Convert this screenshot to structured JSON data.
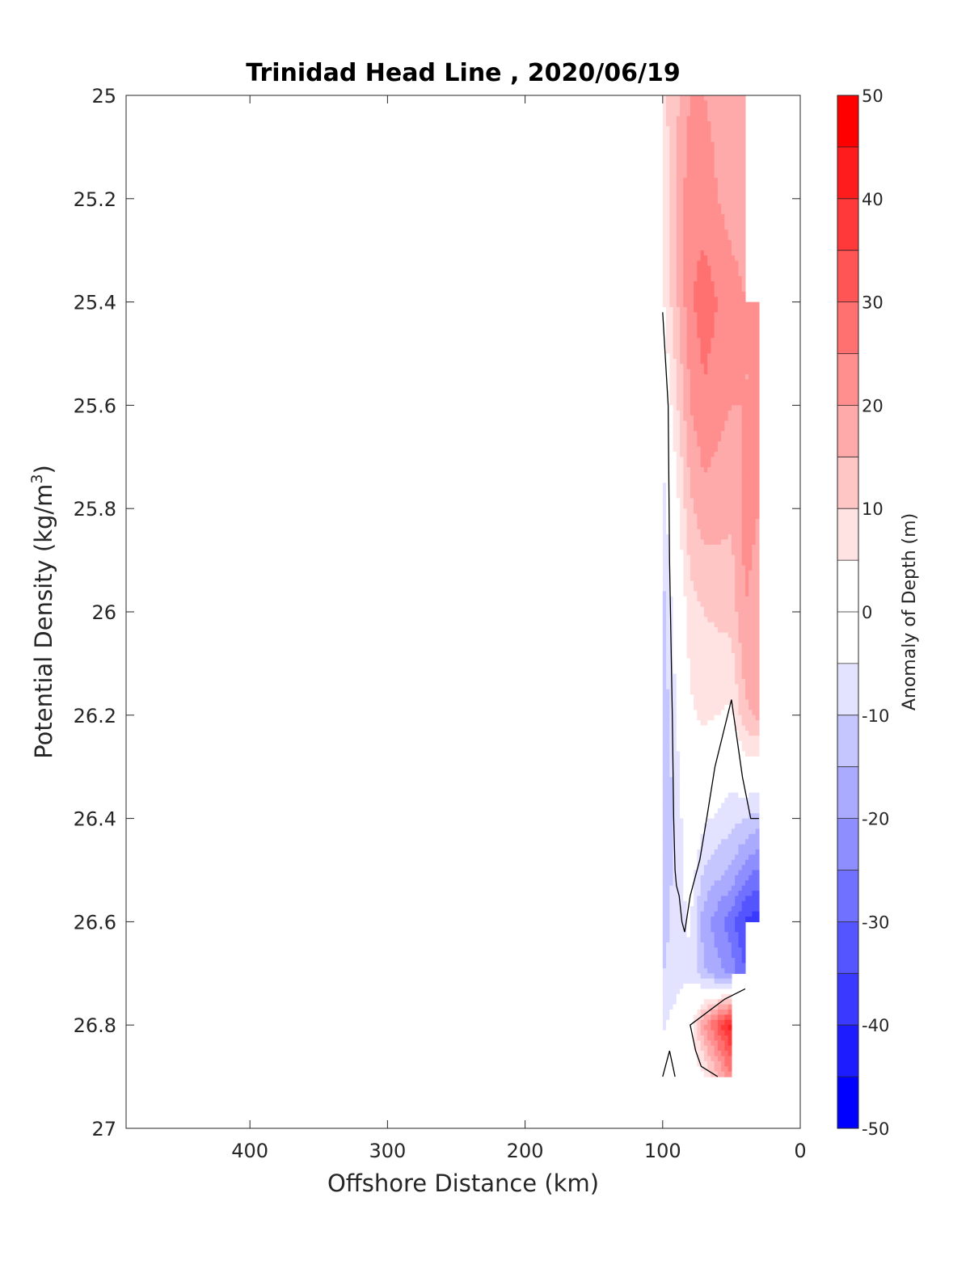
{
  "chart_data": {
    "type": "heatmap",
    "subtype": "filled-contour",
    "title": "Trinidad Head Line , 2020/06/19",
    "xlabel": "Offshore Distance (km)",
    "ylabel_main": "Potential Density (kg/m",
    "ylabel_sup": "3",
    "ylabel_tail": ")",
    "xlim": [
      490,
      0
    ],
    "x_reversed": true,
    "ylim": [
      25,
      27
    ],
    "y_reversed": true,
    "x_ticks": [
      400,
      300,
      200,
      100,
      0
    ],
    "y_ticks": [
      25,
      25.2,
      25.4,
      25.6,
      25.8,
      26,
      26.2,
      26.4,
      26.6,
      26.8,
      27
    ],
    "x_tick_labels": [
      "400",
      "300",
      "200",
      "100",
      "0"
    ],
    "y_tick_labels": [
      "25",
      "25.2",
      "25.4",
      "25.6",
      "25.8",
      "26",
      "26.2",
      "26.4",
      "26.6",
      "26.8",
      "27"
    ],
    "colorbar": {
      "label": "Anomaly of Depth (m)",
      "range": [
        -50,
        50
      ],
      "levels": [
        -50,
        -45,
        -40,
        -35,
        -30,
        -25,
        -20,
        -15,
        -10,
        -5,
        0,
        5,
        10,
        15,
        20,
        25,
        30,
        35,
        40,
        45,
        50
      ],
      "ticks": [
        50,
        40,
        30,
        20,
        10,
        0,
        -10,
        -20,
        -30,
        -40,
        -50
      ],
      "tick_labels": [
        "50",
        "40",
        "30",
        "20",
        "10",
        "0",
        "-10",
        "-20",
        "-30",
        "-40",
        "-50"
      ],
      "colormap": "blue-white-red",
      "colors": {
        "negative": "#0000ff",
        "zero": "#ffffff",
        "positive": "#ff0000"
      }
    },
    "field": {
      "x": [
        100,
        80,
        70,
        50,
        40,
        30
      ],
      "y": [
        25.0,
        25.2,
        25.4,
        25.6,
        25.8,
        26.0,
        26.2,
        26.4,
        26.5,
        26.6,
        26.7,
        26.8,
        26.9
      ],
      "z": [
        [
          8,
          20,
          20,
          18,
          18,
          null
        ],
        [
          6,
          24,
          22,
          18,
          18,
          null
        ],
        [
          4,
          24,
          28,
          22,
          20,
          20
        ],
        [
          -2,
          20,
          24,
          20,
          20,
          20
        ],
        [
          -8,
          14,
          18,
          16,
          22,
          20
        ],
        [
          -12,
          8,
          10,
          12,
          20,
          18
        ],
        [
          -14,
          4,
          6,
          4,
          14,
          16
        ],
        [
          -16,
          0,
          -4,
          -8,
          -10,
          -12
        ],
        [
          -14,
          -2,
          -10,
          -16,
          -22,
          -26
        ],
        [
          -12,
          -4,
          -18,
          -28,
          -36,
          -38
        ],
        [
          -10,
          -6,
          -14,
          -22,
          -30,
          null
        ],
        [
          -6,
          2,
          20,
          44,
          null,
          null
        ],
        [
          2,
          0,
          4,
          24,
          null,
          null
        ]
      ],
      "zero_contours": [
        [
          [
            100,
            25.42
          ],
          [
            96,
            25.6
          ],
          [
            95,
            25.9
          ],
          [
            93,
            26.2
          ],
          [
            92,
            26.4
          ],
          [
            91,
            26.5
          ],
          [
            90,
            26.53
          ],
          [
            88,
            26.55
          ],
          [
            86,
            26.6
          ],
          [
            84,
            26.62
          ],
          [
            80,
            26.55
          ],
          [
            73,
            26.48
          ],
          [
            68,
            26.4
          ],
          [
            62,
            26.3
          ],
          [
            50,
            26.17
          ],
          [
            42,
            26.32
          ],
          [
            36,
            26.4
          ],
          [
            30,
            26.4
          ]
        ],
        [
          [
            40,
            26.73
          ],
          [
            55,
            26.75
          ],
          [
            70,
            26.78
          ],
          [
            80,
            26.8
          ],
          [
            76,
            26.85
          ],
          [
            72,
            26.88
          ],
          [
            60,
            26.9
          ]
        ],
        [
          [
            100,
            26.9
          ],
          [
            95,
            26.85
          ],
          [
            91,
            26.9
          ]
        ]
      ]
    }
  }
}
